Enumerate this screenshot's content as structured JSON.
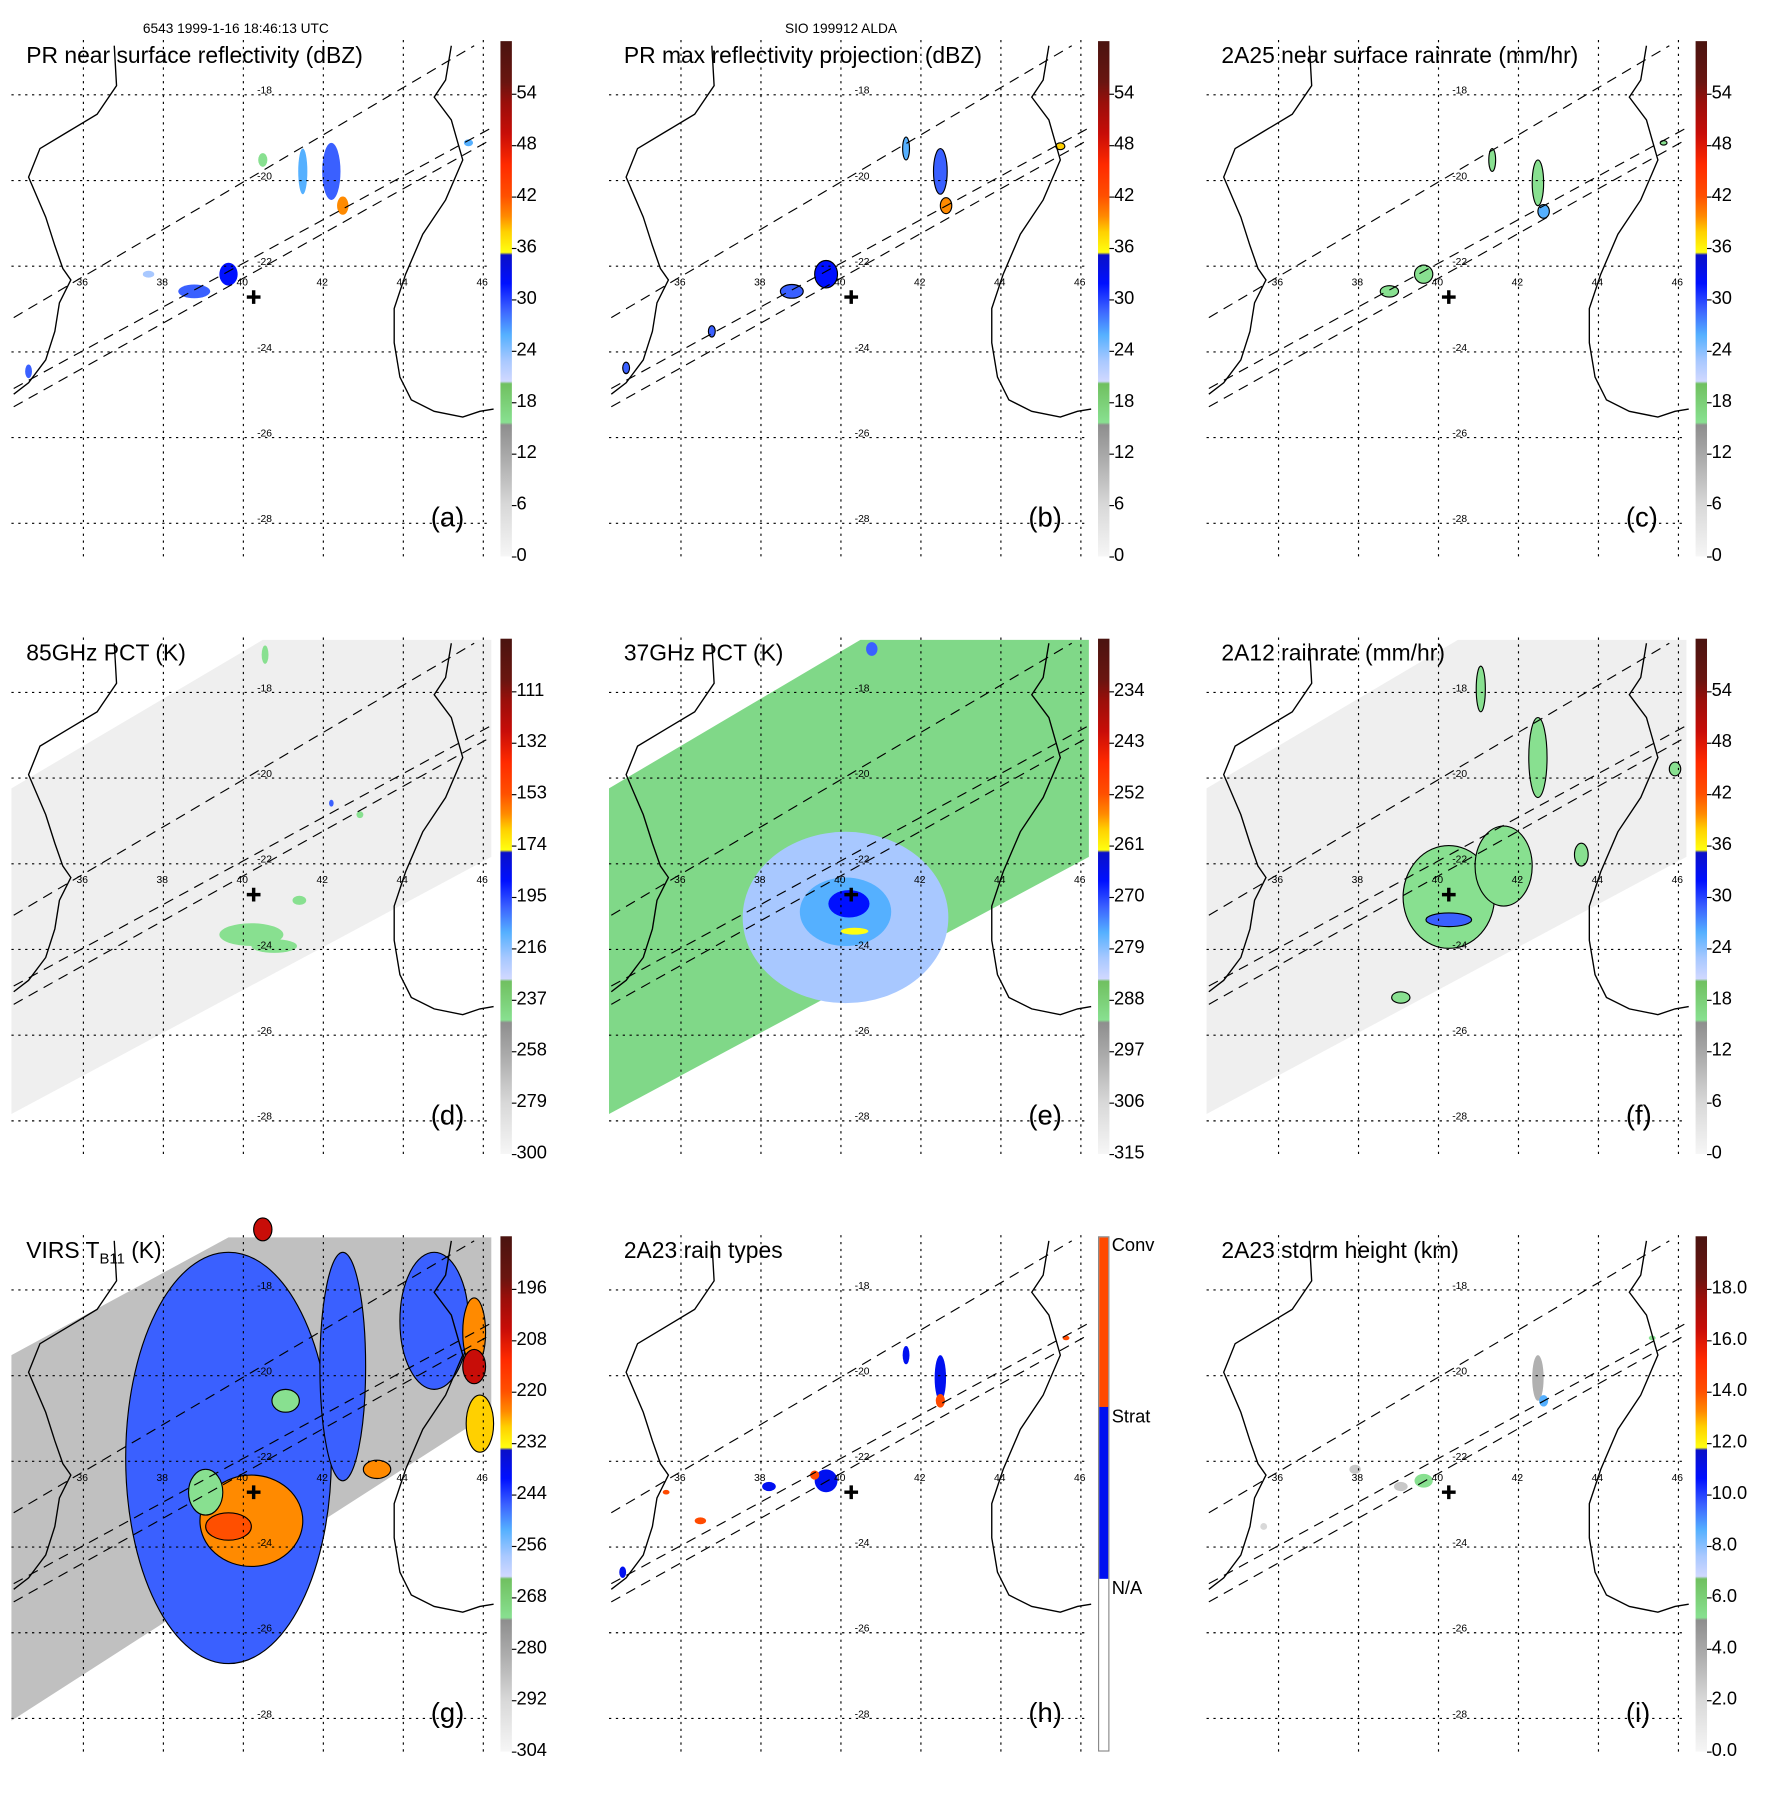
{
  "header": {
    "left": "6543 1999-1-16 18:46:13 UTC",
    "center": "SIO 199912 ALDA"
  },
  "lat_labels": [
    "-18",
    "-20",
    "-22",
    "-24",
    "-26",
    "-28"
  ],
  "lon_labels": [
    "36",
    "38",
    "40",
    "42",
    "44",
    "46"
  ],
  "chart_data": [
    {
      "type": "heatmap",
      "panel": "(a)",
      "title": "PR near surface reflectivity (dBZ)",
      "colorbar_ticks": [
        "54",
        "48",
        "42",
        "36",
        "30",
        "24",
        "18",
        "12",
        "6",
        "0"
      ],
      "swath": "PR"
    },
    {
      "type": "heatmap",
      "panel": "(b)",
      "title": "PR max reflectivity projection (dBZ)",
      "colorbar_ticks": [
        "54",
        "48",
        "42",
        "36",
        "30",
        "24",
        "18",
        "12",
        "6",
        "0"
      ],
      "swath": "PR"
    },
    {
      "type": "heatmap",
      "panel": "(c)",
      "title": "2A25 near surface rainrate (mm/hr)",
      "colorbar_ticks": [
        "54",
        "48",
        "42",
        "36",
        "30",
        "24",
        "18",
        "12",
        "6",
        "0"
      ],
      "swath": "PR"
    },
    {
      "type": "heatmap",
      "panel": "(d)",
      "title": "85GHz PCT (K)",
      "colorbar_ticks": [
        "111",
        "132",
        "153",
        "174",
        "195",
        "216",
        "237",
        "258",
        "279",
        "300"
      ],
      "swath": "TMI"
    },
    {
      "type": "heatmap",
      "panel": "(e)",
      "title": "37GHz PCT (K)",
      "colorbar_ticks": [
        "234",
        "243",
        "252",
        "261",
        "270",
        "279",
        "288",
        "297",
        "306",
        "315"
      ],
      "swath": "TMI"
    },
    {
      "type": "heatmap",
      "panel": "(f)",
      "title": "2A12 rainrate (mm/hr)",
      "colorbar_ticks": [
        "54",
        "48",
        "42",
        "36",
        "30",
        "24",
        "18",
        "12",
        "6",
        "0"
      ],
      "swath": "TMI"
    },
    {
      "type": "heatmap",
      "panel": "(g)",
      "title": "VIRS T",
      "title_sub": "B11",
      "title_suffix": " (K)",
      "colorbar_ticks": [
        "196",
        "208",
        "220",
        "232",
        "244",
        "256",
        "268",
        "280",
        "292",
        "304"
      ],
      "swath": "VIRS"
    },
    {
      "type": "heatmap",
      "panel": "(h)",
      "title": "2A23 rain types",
      "colorbar_categories": [
        "Conv",
        "Strat",
        "N/A"
      ],
      "category_colors": [
        "#ff4a00",
        "#0010f0",
        "#ffffff"
      ],
      "swath": "PR"
    },
    {
      "type": "heatmap",
      "panel": "(i)",
      "title": "2A23 storm height (km)",
      "colorbar_ticks": [
        "18.0",
        "16.0",
        "14.0",
        "12.0",
        "10.0",
        "8.0",
        "6.0",
        "4.0",
        "2.0",
        "0.0"
      ],
      "swath": "PR"
    }
  ]
}
